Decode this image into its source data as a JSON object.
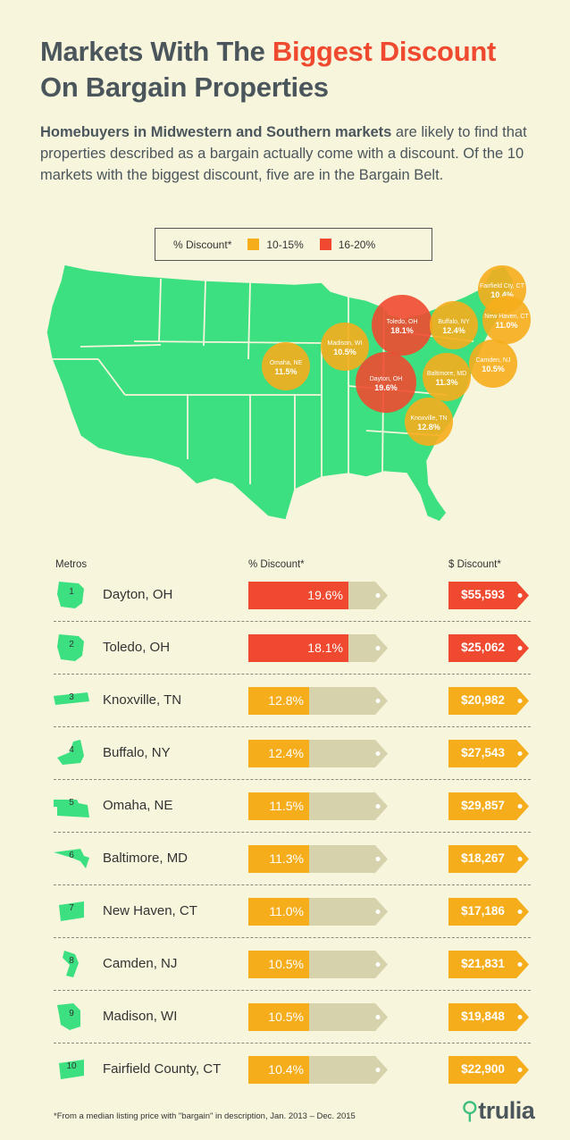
{
  "title": {
    "part1": "Markets With The ",
    "highlight": "Biggest Discount",
    "part2": "On Bargain Properties"
  },
  "intro": {
    "bold": "Homebuyers in Midwestern and Southern markets",
    "rest": " are likely to find that properties described as a bargain actually come with a discount. Of the 10 markets with the biggest discount, five are in the Bargain Belt."
  },
  "legend": {
    "label": "% Discount*",
    "items": [
      {
        "label": "10-15%",
        "color": "#f6ad1c"
      },
      {
        "label": "16-20%",
        "color": "#ef4a30"
      }
    ]
  },
  "colors": {
    "map_green": "#3ce081",
    "orange": "#f6ad1c",
    "red": "#ef4a30",
    "bar_track": "#d6d2ac",
    "bg": "#f7f5dc"
  },
  "map_markers": [
    {
      "name": "Fairfield Cty, CT",
      "value": "10.4%",
      "tier": "orange"
    },
    {
      "name": "New Haven, CT",
      "value": "11.0%",
      "tier": "orange"
    },
    {
      "name": "Toledo, OH",
      "value": "18.1%",
      "tier": "red"
    },
    {
      "name": "Buffalo, NY",
      "value": "12.4%",
      "tier": "orange"
    },
    {
      "name": "Madison, WI",
      "value": "10.5%",
      "tier": "orange"
    },
    {
      "name": "Omaha, NE",
      "value": "11.5%",
      "tier": "orange"
    },
    {
      "name": "Camden, NJ",
      "value": "10.5%",
      "tier": "orange"
    },
    {
      "name": "Baltimore, MD",
      "value": "11.3%",
      "tier": "orange"
    },
    {
      "name": "Dayton, OH",
      "value": "19.6%",
      "tier": "red"
    },
    {
      "name": "Knoxville, TN",
      "value": "12.8%",
      "tier": "orange"
    }
  ],
  "chart_data": {
    "type": "table",
    "columns": [
      "Metros",
      "% Discount*",
      "$ Discount*"
    ],
    "rows": [
      {
        "rank": "1",
        "metro": "Dayton, OH",
        "pct": 19.6,
        "pct_label": "19.6%",
        "dollar": "$55,593",
        "tier": "red",
        "shape": "ohio"
      },
      {
        "rank": "2",
        "metro": "Toledo, OH",
        "pct": 18.1,
        "pct_label": "18.1%",
        "dollar": "$25,062",
        "tier": "red",
        "shape": "ohio"
      },
      {
        "rank": "3",
        "metro": "Knoxville, TN",
        "pct": 12.8,
        "pct_label": "12.8%",
        "dollar": "$20,982",
        "tier": "orange",
        "shape": "tennessee"
      },
      {
        "rank": "4",
        "metro": "Buffalo, NY",
        "pct": 12.4,
        "pct_label": "12.4%",
        "dollar": "$27,543",
        "tier": "orange",
        "shape": "newyork"
      },
      {
        "rank": "5",
        "metro": "Omaha, NE",
        "pct": 11.5,
        "pct_label": "11.5%",
        "dollar": "$29,857",
        "tier": "orange",
        "shape": "nebraska"
      },
      {
        "rank": "6",
        "metro": "Baltimore, MD",
        "pct": 11.3,
        "pct_label": "11.3%",
        "dollar": "$18,267",
        "tier": "orange",
        "shape": "maryland"
      },
      {
        "rank": "7",
        "metro": "New Haven, CT",
        "pct": 11.0,
        "pct_label": "11.0%",
        "dollar": "$17,186",
        "tier": "orange",
        "shape": "connecticut"
      },
      {
        "rank": "8",
        "metro": "Camden, NJ",
        "pct": 10.5,
        "pct_label": "10.5%",
        "dollar": "$21,831",
        "tier": "orange",
        "shape": "newjersey"
      },
      {
        "rank": "9",
        "metro": "Madison, WI",
        "pct": 10.5,
        "pct_label": "10.5%",
        "dollar": "$19,848",
        "tier": "orange",
        "shape": "wisconsin"
      },
      {
        "rank": "10",
        "metro": "Fairfield County, CT",
        "pct": 10.4,
        "pct_label": "10.4%",
        "dollar": "$22,900",
        "tier": "orange",
        "shape": "connecticut"
      }
    ]
  },
  "footnote": "*From a median listing price with \"bargain\" in description, Jan. 2013 – Dec. 2015",
  "logo": {
    "text": "trulia",
    "icon": "map-pin-icon"
  }
}
